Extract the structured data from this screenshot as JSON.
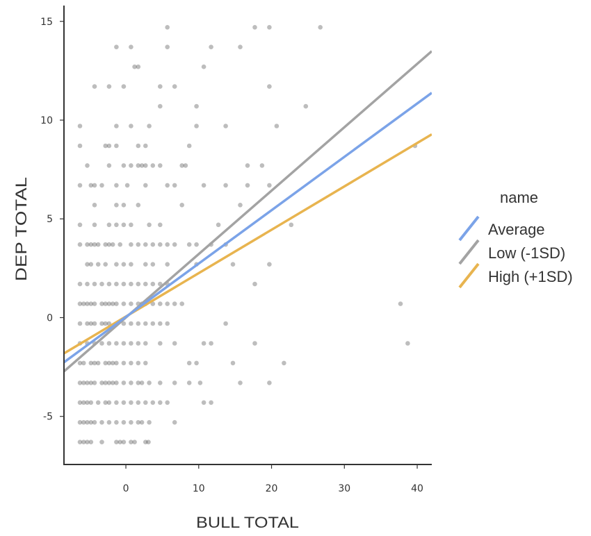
{
  "chart_data": {
    "type": "scatter",
    "xlabel": "BULL TOTAL",
    "ylabel": "DEP TOTAL",
    "xlim": [
      -8.5,
      42
    ],
    "ylim": [
      -7.4,
      15.8
    ],
    "x_ticks": [
      0,
      10,
      20,
      30,
      40
    ],
    "y_ticks": [
      -5,
      0,
      5,
      10,
      15
    ],
    "grid": false,
    "legend": {
      "title": "name",
      "placement": "right",
      "entries": [
        "Average",
        "Low (-1SD)",
        "High (+1SD)"
      ]
    },
    "colors": {
      "points": "#333333",
      "axis": "#333333"
    },
    "series": [
      {
        "name": "Average",
        "type": "line",
        "color": "#7ba3e8",
        "x": [
          -8.5,
          42
        ],
        "y": [
          -2.26,
          11.38
        ]
      },
      {
        "name": "Low (-1SD)",
        "type": "line",
        "color": "#a3a3a3",
        "x": [
          -8.5,
          42
        ],
        "y": [
          -2.72,
          13.49
        ]
      },
      {
        "name": "High (+1SD)",
        "type": "line",
        "color": "#e8b44f",
        "x": [
          -8.5,
          42
        ],
        "y": [
          -1.81,
          9.28
        ]
      },
      {
        "name": "",
        "type": "scatter",
        "points": [
          [
            -6.3,
            -6.3
          ],
          [
            -5.8,
            -6.3
          ],
          [
            -5.3,
            -6.3
          ],
          [
            -4.8,
            -6.3
          ],
          [
            -3.3,
            -6.3
          ],
          [
            -1.3,
            -6.3
          ],
          [
            -0.8,
            -6.3
          ],
          [
            -0.3,
            -6.3
          ],
          [
            0.7,
            -6.3
          ],
          [
            1.2,
            -6.3
          ],
          [
            2.7,
            -6.3
          ],
          [
            3.1,
            -6.3
          ],
          [
            -6.3,
            -5.3
          ],
          [
            -5.8,
            -5.3
          ],
          [
            -5.3,
            -5.3
          ],
          [
            -4.8,
            -5.3
          ],
          [
            -4.3,
            -5.3
          ],
          [
            -3.3,
            -5.3
          ],
          [
            -2.3,
            -5.3
          ],
          [
            -1.3,
            -5.3
          ],
          [
            -0.3,
            -5.3
          ],
          [
            0.7,
            -5.3
          ],
          [
            1.7,
            -5.3
          ],
          [
            2.2,
            -5.3
          ],
          [
            3.2,
            -5.3
          ],
          [
            6.7,
            -5.3
          ],
          [
            -6.3,
            -4.3
          ],
          [
            -5.8,
            -4.3
          ],
          [
            -5.3,
            -4.3
          ],
          [
            -4.8,
            -4.3
          ],
          [
            -3.8,
            -4.3
          ],
          [
            -2.8,
            -4.3
          ],
          [
            -2.3,
            -4.3
          ],
          [
            -1.3,
            -4.3
          ],
          [
            -0.3,
            -4.3
          ],
          [
            0.7,
            -4.3
          ],
          [
            1.7,
            -4.3
          ],
          [
            2.7,
            -4.3
          ],
          [
            3.7,
            -4.3
          ],
          [
            4.7,
            -4.3
          ],
          [
            5.7,
            -4.3
          ],
          [
            10.7,
            -4.3
          ],
          [
            11.7,
            -4.3
          ],
          [
            -6.3,
            -3.3
          ],
          [
            -5.8,
            -3.3
          ],
          [
            -5.3,
            -3.3
          ],
          [
            -4.8,
            -3.3
          ],
          [
            -4.3,
            -3.3
          ],
          [
            -3.3,
            -3.3
          ],
          [
            -2.8,
            -3.3
          ],
          [
            -2.3,
            -3.3
          ],
          [
            -1.8,
            -3.3
          ],
          [
            -1.3,
            -3.3
          ],
          [
            -0.3,
            -3.3
          ],
          [
            0.7,
            -3.3
          ],
          [
            1.7,
            -3.3
          ],
          [
            2.2,
            -3.3
          ],
          [
            3.2,
            -3.3
          ],
          [
            4.7,
            -3.3
          ],
          [
            6.7,
            -3.3
          ],
          [
            8.7,
            -3.3
          ],
          [
            10.2,
            -3.3
          ],
          [
            15.7,
            -3.3
          ],
          [
            19.7,
            -3.3
          ],
          [
            -6.3,
            -2.3
          ],
          [
            -5.8,
            -2.3
          ],
          [
            -4.8,
            -2.3
          ],
          [
            -4.3,
            -2.3
          ],
          [
            -3.8,
            -2.3
          ],
          [
            -2.8,
            -2.3
          ],
          [
            -2.3,
            -2.3
          ],
          [
            -1.8,
            -2.3
          ],
          [
            -1.3,
            -2.3
          ],
          [
            -0.3,
            -2.3
          ],
          [
            0.7,
            -2.3
          ],
          [
            1.7,
            -2.3
          ],
          [
            2.7,
            -2.3
          ],
          [
            8.7,
            -2.3
          ],
          [
            9.7,
            -2.3
          ],
          [
            14.7,
            -2.3
          ],
          [
            21.7,
            -2.3
          ],
          [
            -6.3,
            -1.3
          ],
          [
            -5.3,
            -1.3
          ],
          [
            -4.3,
            -1.3
          ],
          [
            -3.3,
            -1.3
          ],
          [
            -2.3,
            -1.3
          ],
          [
            -1.3,
            -1.3
          ],
          [
            -0.3,
            -1.3
          ],
          [
            0.7,
            -1.3
          ],
          [
            1.7,
            -1.3
          ],
          [
            2.7,
            -1.3
          ],
          [
            4.7,
            -1.3
          ],
          [
            6.7,
            -1.3
          ],
          [
            10.7,
            -1.3
          ],
          [
            11.7,
            -1.3
          ],
          [
            17.7,
            -1.3
          ],
          [
            38.7,
            -1.3
          ],
          [
            -6.3,
            -0.3
          ],
          [
            -5.3,
            -0.3
          ],
          [
            -4.8,
            -0.3
          ],
          [
            -4.3,
            -0.3
          ],
          [
            -3.3,
            -0.3
          ],
          [
            -2.8,
            -0.3
          ],
          [
            -2.3,
            -0.3
          ],
          [
            -1.3,
            -0.3
          ],
          [
            -0.3,
            -0.3
          ],
          [
            0.7,
            -0.3
          ],
          [
            1.7,
            -0.3
          ],
          [
            2.7,
            -0.3
          ],
          [
            3.7,
            -0.3
          ],
          [
            4.7,
            -0.3
          ],
          [
            5.7,
            -0.3
          ],
          [
            13.7,
            -0.3
          ],
          [
            -6.3,
            0.7
          ],
          [
            -5.8,
            0.7
          ],
          [
            -5.3,
            0.7
          ],
          [
            -4.8,
            0.7
          ],
          [
            -4.3,
            0.7
          ],
          [
            -3.3,
            0.7
          ],
          [
            -2.8,
            0.7
          ],
          [
            -2.3,
            0.7
          ],
          [
            -1.8,
            0.7
          ],
          [
            -1.3,
            0.7
          ],
          [
            -0.3,
            0.7
          ],
          [
            0.7,
            0.7
          ],
          [
            1.7,
            0.7
          ],
          [
            2.2,
            0.7
          ],
          [
            2.7,
            0.7
          ],
          [
            3.7,
            0.7
          ],
          [
            4.7,
            0.7
          ],
          [
            5.7,
            0.7
          ],
          [
            6.7,
            0.7
          ],
          [
            7.7,
            0.7
          ],
          [
            37.7,
            0.7
          ],
          [
            -6.3,
            1.7
          ],
          [
            -5.3,
            1.7
          ],
          [
            -4.3,
            1.7
          ],
          [
            -3.3,
            1.7
          ],
          [
            -2.3,
            1.7
          ],
          [
            -1.3,
            1.7
          ],
          [
            -0.3,
            1.7
          ],
          [
            0.7,
            1.7
          ],
          [
            1.7,
            1.7
          ],
          [
            2.7,
            1.7
          ],
          [
            3.7,
            1.7
          ],
          [
            4.7,
            1.7
          ],
          [
            5.7,
            1.7
          ],
          [
            17.7,
            1.7
          ],
          [
            -5.3,
            2.7
          ],
          [
            -4.8,
            2.7
          ],
          [
            -3.8,
            2.7
          ],
          [
            -2.8,
            2.7
          ],
          [
            -1.3,
            2.7
          ],
          [
            -0.3,
            2.7
          ],
          [
            0.7,
            2.7
          ],
          [
            2.7,
            2.7
          ],
          [
            3.7,
            2.7
          ],
          [
            5.7,
            2.7
          ],
          [
            9.7,
            2.7
          ],
          [
            14.7,
            2.7
          ],
          [
            19.7,
            2.7
          ],
          [
            -6.3,
            3.7
          ],
          [
            -5.3,
            3.7
          ],
          [
            -4.8,
            3.7
          ],
          [
            -4.3,
            3.7
          ],
          [
            -3.8,
            3.7
          ],
          [
            -2.8,
            3.7
          ],
          [
            -2.3,
            3.7
          ],
          [
            -1.8,
            3.7
          ],
          [
            -0.8,
            3.7
          ],
          [
            0.7,
            3.7
          ],
          [
            1.7,
            3.7
          ],
          [
            2.7,
            3.7
          ],
          [
            3.7,
            3.7
          ],
          [
            4.7,
            3.7
          ],
          [
            5.7,
            3.7
          ],
          [
            6.7,
            3.7
          ],
          [
            8.7,
            3.7
          ],
          [
            9.7,
            3.7
          ],
          [
            11.7,
            3.7
          ],
          [
            13.7,
            3.7
          ],
          [
            -6.3,
            4.7
          ],
          [
            -4.3,
            4.7
          ],
          [
            -2.3,
            4.7
          ],
          [
            -1.3,
            4.7
          ],
          [
            -0.3,
            4.7
          ],
          [
            0.7,
            4.7
          ],
          [
            3.2,
            4.7
          ],
          [
            4.7,
            4.7
          ],
          [
            12.7,
            4.7
          ],
          [
            22.7,
            4.7
          ],
          [
            -4.3,
            5.7
          ],
          [
            -1.3,
            5.7
          ],
          [
            -0.3,
            5.7
          ],
          [
            1.7,
            5.7
          ],
          [
            7.7,
            5.7
          ],
          [
            15.7,
            5.7
          ],
          [
            -6.3,
            6.7
          ],
          [
            -4.8,
            6.7
          ],
          [
            -4.3,
            6.7
          ],
          [
            -3.3,
            6.7
          ],
          [
            -1.3,
            6.7
          ],
          [
            0.2,
            6.7
          ],
          [
            2.7,
            6.7
          ],
          [
            5.7,
            6.7
          ],
          [
            6.7,
            6.7
          ],
          [
            10.7,
            6.7
          ],
          [
            13.7,
            6.7
          ],
          [
            16.7,
            6.7
          ],
          [
            19.7,
            6.7
          ],
          [
            -5.3,
            7.7
          ],
          [
            -2.3,
            7.7
          ],
          [
            -0.3,
            7.7
          ],
          [
            0.7,
            7.7
          ],
          [
            1.7,
            7.7
          ],
          [
            2.2,
            7.7
          ],
          [
            2.7,
            7.7
          ],
          [
            3.7,
            7.7
          ],
          [
            4.7,
            7.7
          ],
          [
            7.7,
            7.7
          ],
          [
            8.2,
            7.7
          ],
          [
            16.7,
            7.7
          ],
          [
            18.7,
            7.7
          ],
          [
            -6.3,
            8.7
          ],
          [
            -2.8,
            8.7
          ],
          [
            -2.3,
            8.7
          ],
          [
            -1.3,
            8.7
          ],
          [
            1.7,
            8.7
          ],
          [
            2.7,
            8.7
          ],
          [
            8.7,
            8.7
          ],
          [
            39.7,
            8.7
          ],
          [
            -6.3,
            9.7
          ],
          [
            -1.3,
            9.7
          ],
          [
            0.7,
            9.7
          ],
          [
            3.2,
            9.7
          ],
          [
            9.7,
            9.7
          ],
          [
            13.7,
            9.7
          ],
          [
            20.7,
            9.7
          ],
          [
            4.7,
            10.7
          ],
          [
            9.7,
            10.7
          ],
          [
            24.7,
            10.7
          ],
          [
            -4.3,
            11.7
          ],
          [
            -2.3,
            11.7
          ],
          [
            -0.3,
            11.7
          ],
          [
            4.7,
            11.7
          ],
          [
            6.7,
            11.7
          ],
          [
            19.7,
            11.7
          ],
          [
            1.2,
            12.7
          ],
          [
            1.7,
            12.7
          ],
          [
            10.7,
            12.7
          ],
          [
            -1.3,
            13.7
          ],
          [
            0.7,
            13.7
          ],
          [
            5.7,
            13.7
          ],
          [
            11.7,
            13.7
          ],
          [
            15.7,
            13.7
          ],
          [
            5.7,
            14.7
          ],
          [
            17.7,
            14.7
          ],
          [
            19.7,
            14.7
          ],
          [
            26.7,
            14.7
          ]
        ]
      }
    ]
  }
}
